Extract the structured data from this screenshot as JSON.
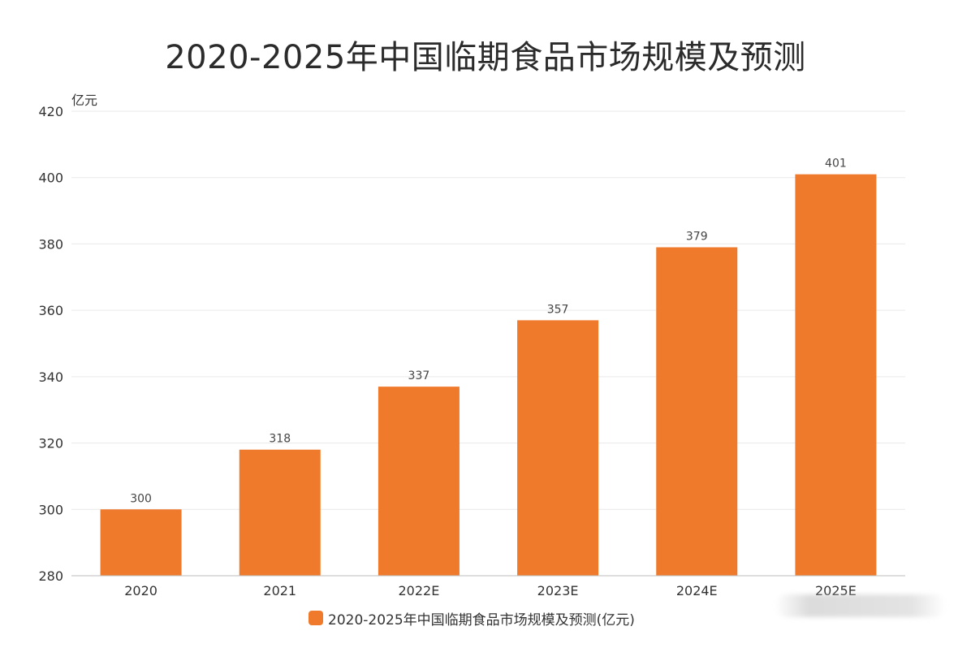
{
  "title": "2020-2025年中国临期食品市场规模及预测",
  "legend_label": "2020-2025年中国临期食品市场规模及预测(亿元)",
  "colors": {
    "bar": "#f07a2c",
    "grid": "#e9e9e9",
    "axis": "#bdbdbd"
  },
  "chart_data": {
    "type": "bar",
    "title": "2020-2025年中国临期食品市场规模及预测",
    "unit_label": "亿元",
    "categories": [
      "2020",
      "2021",
      "2022E",
      "2023E",
      "2024E",
      "2025E"
    ],
    "series": [
      {
        "name": "2020-2025年中国临期食品市场规模及预测(亿元)",
        "values": [
          300,
          318,
          337,
          357,
          379,
          401
        ]
      }
    ],
    "ylim": [
      280,
      420
    ],
    "yticks": [
      280,
      300,
      320,
      340,
      360,
      380,
      400,
      420
    ],
    "grid": true,
    "data_labels": true,
    "legend_position": "bottom"
  }
}
